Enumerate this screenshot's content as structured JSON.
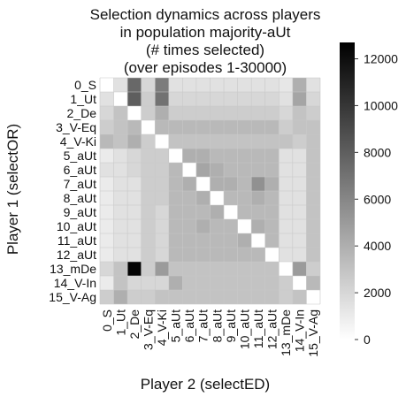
{
  "chart_data": {
    "type": "heatmap",
    "title_lines": [
      "Selection dynamics across players",
      "in population majority-aUt",
      "(# times selected)",
      "(over episodes 1-30000)"
    ],
    "xlabel": "Player 2 (selectED)",
    "ylabel": "Player 1 (selectOR)",
    "x_categories": [
      "0_S",
      "1_Ut",
      "2_De",
      "3_V-Eq",
      "4_V-Ki",
      "5_aUt",
      "6_aUt",
      "7_aUt",
      "8_aUt",
      "9_aUt",
      "10_aUt",
      "11_aUt",
      "12_aUt",
      "13_mDe",
      "14_V-In",
      "15_V-Ag"
    ],
    "y_categories": [
      "0_S",
      "1_Ut",
      "2_De",
      "3_V-Eq",
      "4_V-Ki",
      "5_aUt",
      "6_aUt",
      "7_aUt",
      "8_aUt",
      "9_aUt",
      "10_aUt",
      "11_aUt",
      "12_aUt",
      "13_mDe",
      "14_V-In",
      "15_V-Ag"
    ],
    "values": [
      [
        0,
        1500,
        7500,
        2000,
        6500,
        1500,
        1500,
        1500,
        1500,
        1500,
        1500,
        1500,
        1500,
        1200,
        4000,
        1500
      ],
      [
        1500,
        0,
        8000,
        2500,
        7000,
        2000,
        2000,
        2000,
        2000,
        2000,
        2000,
        2000,
        2000,
        1500,
        4500,
        2000
      ],
      [
        2000,
        3000,
        0,
        2500,
        4000,
        2500,
        2500,
        2500,
        2500,
        2500,
        2500,
        2500,
        2500,
        2000,
        3000,
        2500
      ],
      [
        2500,
        3000,
        3500,
        0,
        3500,
        3500,
        3500,
        3500,
        3500,
        3500,
        3500,
        3500,
        3500,
        2500,
        3000,
        3000
      ],
      [
        3500,
        3000,
        4000,
        2500,
        0,
        3000,
        3000,
        3000,
        3000,
        3000,
        3000,
        3000,
        3000,
        3000,
        2500,
        3000
      ],
      [
        1000,
        1500,
        2000,
        2500,
        2500,
        0,
        4000,
        4000,
        3500,
        3500,
        3500,
        3500,
        3500,
        1500,
        1500,
        3000
      ],
      [
        1500,
        1500,
        2000,
        2500,
        2500,
        3500,
        0,
        4500,
        4000,
        3500,
        3500,
        3500,
        3500,
        1500,
        1500,
        3000
      ],
      [
        1000,
        1500,
        1500,
        2500,
        2500,
        3500,
        4000,
        0,
        4000,
        4000,
        3500,
        5500,
        4000,
        1500,
        1500,
        3000
      ],
      [
        1000,
        1500,
        1500,
        2500,
        2500,
        3500,
        3500,
        4000,
        0,
        3500,
        3500,
        4000,
        3500,
        1500,
        1500,
        3000
      ],
      [
        1000,
        1500,
        1500,
        2500,
        2000,
        3500,
        3500,
        3500,
        4000,
        0,
        3500,
        3500,
        3500,
        1500,
        1500,
        3000
      ],
      [
        1000,
        1500,
        1500,
        2500,
        2000,
        3500,
        3500,
        4000,
        3500,
        3500,
        0,
        4000,
        3500,
        1500,
        1500,
        3000
      ],
      [
        1000,
        1500,
        1500,
        2500,
        2000,
        3500,
        3500,
        3500,
        3500,
        3500,
        4000,
        0,
        3500,
        1500,
        1500,
        3000
      ],
      [
        1000,
        1500,
        1500,
        2500,
        2000,
        3500,
        3500,
        3500,
        3500,
        3500,
        3500,
        3500,
        0,
        1500,
        1500,
        3000
      ],
      [
        2000,
        3000,
        12500,
        2500,
        5000,
        3000,
        3000,
        3000,
        3000,
        3000,
        3000,
        3000,
        3000,
        0,
        5000,
        2500
      ],
      [
        1000,
        3000,
        2000,
        2000,
        2000,
        4000,
        3000,
        3000,
        3000,
        3000,
        3000,
        3000,
        3000,
        2500,
        0,
        3500
      ],
      [
        2500,
        4000,
        2500,
        2500,
        3000,
        3000,
        3000,
        3000,
        3000,
        3000,
        3000,
        3000,
        3000,
        2500,
        3000,
        0
      ]
    ],
    "color_scale": {
      "min": 0,
      "max": 12700,
      "low_color": "#ffffff",
      "high_color": "#000000"
    },
    "colorbar_ticks": [
      0,
      2000,
      4000,
      6000,
      8000,
      10000,
      12000
    ]
  }
}
